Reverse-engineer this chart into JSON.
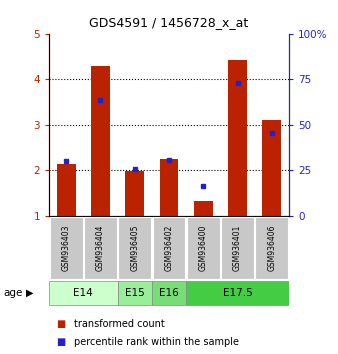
{
  "title": "GDS4591 / 1456728_x_at",
  "samples": [
    "GSM936403",
    "GSM936404",
    "GSM936405",
    "GSM936402",
    "GSM936400",
    "GSM936401",
    "GSM936406"
  ],
  "red_values": [
    2.15,
    4.28,
    1.98,
    2.25,
    1.32,
    4.42,
    3.1
  ],
  "blue_values": [
    2.2,
    3.55,
    2.02,
    2.22,
    1.65,
    3.92,
    2.82
  ],
  "ylim": [
    1,
    5
  ],
  "y_left_ticks": [
    1,
    2,
    3,
    4,
    5
  ],
  "y_right_ticks": [
    0,
    25,
    50,
    75,
    100
  ],
  "red_color": "#bb2200",
  "blue_color": "#2222cc",
  "sample_bg": "#c8c8c8",
  "age_spans": [
    {
      "label": "E14",
      "start": 0,
      "end": 1,
      "color": "#ccffcc"
    },
    {
      "label": "E15",
      "start": 2,
      "end": 2,
      "color": "#99ee99"
    },
    {
      "label": "E16",
      "start": 3,
      "end": 3,
      "color": "#77dd77"
    },
    {
      "label": "E17.5",
      "start": 4,
      "end": 6,
      "color": "#44cc44"
    }
  ],
  "legend_red": "transformed count",
  "legend_blue": "percentile rank within the sample",
  "age_label": "age"
}
